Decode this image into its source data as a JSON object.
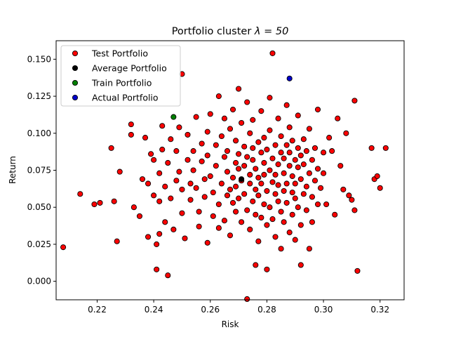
{
  "chart_data": {
    "type": "scatter",
    "title": "Portfolio cluster",
    "title_lambda": "λ = 50",
    "xlabel": "Risk",
    "ylabel": "Return",
    "xlim": [
      0.2055,
      0.3285
    ],
    "ylim": [
      -0.0125,
      0.1625
    ],
    "xticks": [
      0.22,
      0.24,
      0.26,
      0.28,
      0.3,
      0.32
    ],
    "xtick_labels": [
      "0.22",
      "0.24",
      "0.26",
      "0.28",
      "0.30",
      "0.32"
    ],
    "yticks": [
      0.0,
      0.025,
      0.05,
      0.075,
      0.1,
      0.125,
      0.15
    ],
    "ytick_labels": [
      "0.000",
      "0.025",
      "0.050",
      "0.075",
      "0.100",
      "0.125",
      "0.150"
    ],
    "grid": false,
    "legend_position": "top-left",
    "series": [
      {
        "name": "Test Portfolio",
        "color": "#ff0000",
        "points": [
          [
            0.208,
            0.023
          ],
          [
            0.214,
            0.059
          ],
          [
            0.219,
            0.052
          ],
          [
            0.221,
            0.053
          ],
          [
            0.225,
            0.09
          ],
          [
            0.226,
            0.054
          ],
          [
            0.227,
            0.027
          ],
          [
            0.228,
            0.074
          ],
          [
            0.232,
            0.106
          ],
          [
            0.232,
            0.099
          ],
          [
            0.233,
            0.05
          ],
          [
            0.235,
            0.044
          ],
          [
            0.236,
            0.069
          ],
          [
            0.237,
            0.097
          ],
          [
            0.238,
            0.066
          ],
          [
            0.238,
            0.03
          ],
          [
            0.239,
            0.086
          ],
          [
            0.24,
            0.082
          ],
          [
            0.24,
            0.058
          ],
          [
            0.241,
            0.025
          ],
          [
            0.241,
            0.008
          ],
          [
            0.242,
            0.032
          ],
          [
            0.242,
            0.054
          ],
          [
            0.242,
            0.073
          ],
          [
            0.243,
            0.089
          ],
          [
            0.243,
            0.105
          ],
          [
            0.244,
            0.04
          ],
          [
            0.244,
            0.064
          ],
          [
            0.245,
            0.08
          ],
          [
            0.245,
            0.004
          ],
          [
            0.246,
            0.096
          ],
          [
            0.246,
            0.056
          ],
          [
            0.247,
            0.035
          ],
          [
            0.248,
            0.068
          ],
          [
            0.248,
            0.088
          ],
          [
            0.249,
            0.074
          ],
          [
            0.249,
            0.104
          ],
          [
            0.25,
            0.14
          ],
          [
            0.25,
            0.062
          ],
          [
            0.25,
            0.046
          ],
          [
            0.251,
            0.029
          ],
          [
            0.252,
            0.099
          ],
          [
            0.252,
            0.082
          ],
          [
            0.253,
            0.066
          ],
          [
            0.253,
            0.055
          ],
          [
            0.254,
            0.088
          ],
          [
            0.254,
            0.075
          ],
          [
            0.255,
            0.111
          ],
          [
            0.255,
            0.063
          ],
          [
            0.256,
            0.037
          ],
          [
            0.256,
            0.047
          ],
          [
            0.257,
            0.093
          ],
          [
            0.257,
            0.081
          ],
          [
            0.258,
            0.069
          ],
          [
            0.258,
            0.057
          ],
          [
            0.259,
            0.101
          ],
          [
            0.259,
            0.026
          ],
          [
            0.259,
            0.085
          ],
          [
            0.26,
            0.071
          ],
          [
            0.26,
            0.113
          ],
          [
            0.261,
            0.044
          ],
          [
            0.261,
            0.06
          ],
          [
            0.262,
            0.092
          ],
          [
            0.262,
            0.078
          ],
          [
            0.263,
            0.052
          ],
          [
            0.263,
            0.036
          ],
          [
            0.263,
            0.125
          ],
          [
            0.264,
            0.066
          ],
          [
            0.264,
            0.098
          ],
          [
            0.265,
            0.084
          ],
          [
            0.265,
            0.11
          ],
          [
            0.265,
            0.041
          ],
          [
            0.266,
            0.058
          ],
          [
            0.266,
            0.074
          ],
          [
            0.266,
            0.088
          ],
          [
            0.267,
            0.062
          ],
          [
            0.267,
            0.031
          ],
          [
            0.267,
            0.103
          ],
          [
            0.268,
            0.07
          ],
          [
            0.268,
            0.053
          ],
          [
            0.268,
            0.116
          ],
          [
            0.269,
            0.08
          ],
          [
            0.269,
            0.047
          ],
          [
            0.269,
            0.095
          ],
          [
            0.269,
            0.064
          ],
          [
            0.27,
            0.086
          ],
          [
            0.27,
            0.13
          ],
          [
            0.27,
            0.056
          ],
          [
            0.27,
            0.076
          ],
          [
            0.271,
            0.04
          ],
          [
            0.271,
            0.107
          ],
          [
            0.271,
            0.068
          ],
          [
            0.272,
            0.091
          ],
          [
            0.272,
            0.059
          ],
          [
            0.272,
            0.078
          ],
          [
            0.273,
            0.048
          ],
          [
            0.273,
            0.121
          ],
          [
            0.273,
            0.084
          ],
          [
            0.273,
            -0.012
          ],
          [
            0.274,
            0.1
          ],
          [
            0.274,
            0.066
          ],
          [
            0.274,
            0.072
          ],
          [
            0.274,
            0.035
          ],
          [
            0.275,
            0.09
          ],
          [
            0.275,
            0.054
          ],
          [
            0.275,
            0.082
          ],
          [
            0.275,
            0.109
          ],
          [
            0.276,
            0.062
          ],
          [
            0.276,
            0.011
          ],
          [
            0.276,
            0.045
          ],
          [
            0.276,
            0.076
          ],
          [
            0.277,
            0.094
          ],
          [
            0.277,
            0.058
          ],
          [
            0.277,
            0.07
          ],
          [
            0.277,
            0.027
          ],
          [
            0.278,
            0.087
          ],
          [
            0.278,
            0.043
          ],
          [
            0.278,
            0.115
          ],
          [
            0.278,
            0.066
          ],
          [
            0.279,
            0.08
          ],
          [
            0.279,
            0.052
          ],
          [
            0.279,
            0.097
          ],
          [
            0.279,
            0.072
          ],
          [
            0.28,
            0.038
          ],
          [
            0.28,
            0.061
          ],
          [
            0.28,
            0.089
          ],
          [
            0.28,
            0.008
          ],
          [
            0.281,
            0.075
          ],
          [
            0.281,
            0.124
          ],
          [
            0.281,
            0.05
          ],
          [
            0.281,
            0.102
          ],
          [
            0.282,
            0.067
          ],
          [
            0.282,
            0.083
          ],
          [
            0.282,
            0.042
          ],
          [
            0.282,
            0.154
          ],
          [
            0.283,
            0.059
          ],
          [
            0.283,
            0.092
          ],
          [
            0.283,
            0.072
          ],
          [
            0.283,
            0.03
          ],
          [
            0.284,
            0.11
          ],
          [
            0.284,
            0.079
          ],
          [
            0.284,
            0.054
          ],
          [
            0.284,
            0.065
          ],
          [
            0.285,
            0.087
          ],
          [
            0.285,
            0.047
          ],
          [
            0.285,
            0.098
          ],
          [
            0.285,
            0.022
          ],
          [
            0.286,
            0.073
          ],
          [
            0.286,
            0.061
          ],
          [
            0.286,
            0.083
          ],
          [
            0.286,
            0.04
          ],
          [
            0.287,
            0.092
          ],
          [
            0.287,
            0.066
          ],
          [
            0.287,
            0.119
          ],
          [
            0.287,
            0.053
          ],
          [
            0.288,
            0.078
          ],
          [
            0.288,
            0.033
          ],
          [
            0.288,
            0.104
          ],
          [
            0.288,
            0.087
          ],
          [
            0.289,
            0.06
          ],
          [
            0.289,
            0.071
          ],
          [
            0.289,
            0.045
          ],
          [
            0.289,
            0.095
          ],
          [
            0.29,
            0.082
          ],
          [
            0.29,
            0.056
          ],
          [
            0.29,
            0.028
          ],
          [
            0.29,
            0.066
          ],
          [
            0.291,
            0.09
          ],
          [
            0.291,
            0.077
          ],
          [
            0.291,
            0.05
          ],
          [
            0.291,
            0.112
          ],
          [
            0.292,
            0.069
          ],
          [
            0.292,
            0.085
          ],
          [
            0.292,
            0.038
          ],
          [
            0.292,
            0.011
          ],
          [
            0.293,
            0.059
          ],
          [
            0.293,
            0.096
          ],
          [
            0.293,
            0.079
          ],
          [
            0.294,
            0.064
          ],
          [
            0.294,
            0.048
          ],
          [
            0.294,
            0.088
          ],
          [
            0.295,
            0.073
          ],
          [
            0.295,
            0.022
          ],
          [
            0.295,
            0.103
          ],
          [
            0.296,
            0.057
          ],
          [
            0.296,
            0.082
          ],
          [
            0.296,
            0.04
          ],
          [
            0.297,
            0.068
          ],
          [
            0.297,
            0.09
          ],
          [
            0.298,
            0.076
          ],
          [
            0.298,
            0.052
          ],
          [
            0.298,
            0.116
          ],
          [
            0.299,
            0.063
          ],
          [
            0.3,
            0.087
          ],
          [
            0.3,
            0.073
          ],
          [
            0.301,
            0.052
          ],
          [
            0.302,
            0.097
          ],
          [
            0.303,
            0.088
          ],
          [
            0.304,
            0.045
          ],
          [
            0.305,
            0.11
          ],
          [
            0.306,
            0.078
          ],
          [
            0.307,
            0.062
          ],
          [
            0.308,
            0.1
          ],
          [
            0.309,
            0.058
          ],
          [
            0.31,
            0.055
          ],
          [
            0.311,
            0.048
          ],
          [
            0.311,
            0.122
          ],
          [
            0.312,
            0.007
          ],
          [
            0.317,
            0.09
          ],
          [
            0.318,
            0.069
          ],
          [
            0.319,
            0.071
          ],
          [
            0.32,
            0.063
          ],
          [
            0.322,
            0.09
          ]
        ]
      },
      {
        "name": "Average Portfolio",
        "color": "#000000",
        "points": [
          [
            0.271,
            0.069
          ]
        ]
      },
      {
        "name": "Train Portfolio",
        "color": "#008000",
        "points": [
          [
            0.247,
            0.111
          ]
        ]
      },
      {
        "name": "Actual Portfolio",
        "color": "#0000cc",
        "points": [
          [
            0.288,
            0.137
          ]
        ]
      }
    ]
  }
}
